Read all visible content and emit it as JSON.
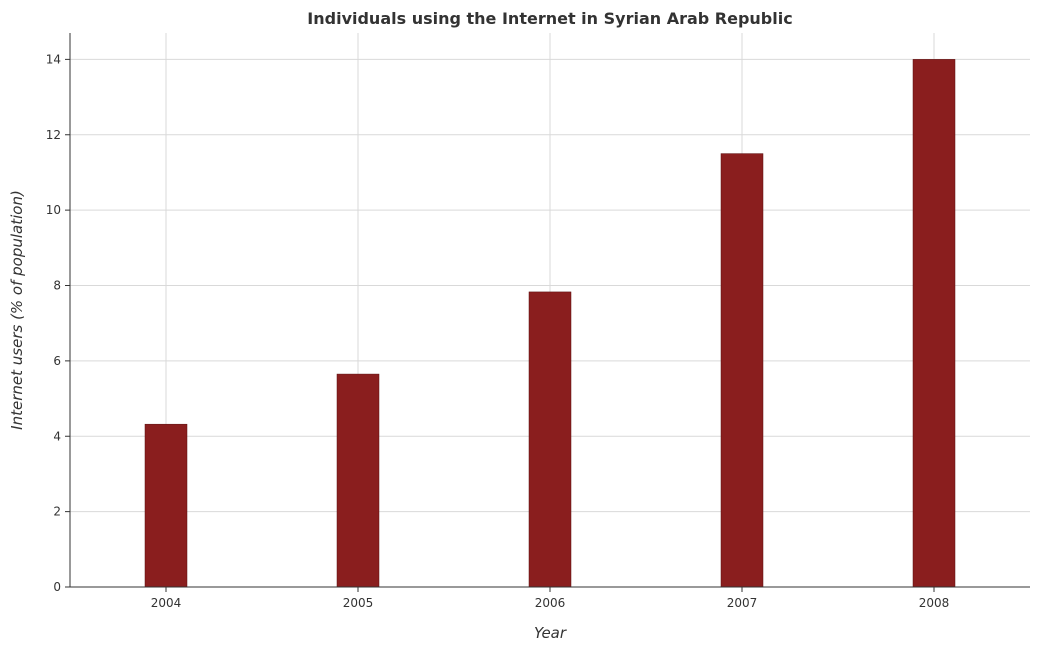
{
  "chart_data": {
    "type": "bar",
    "title": "Individuals using the Internet in Syrian Arab Republic",
    "xlabel": "Year",
    "ylabel": "Internet users (% of population)",
    "categories": [
      "2004",
      "2005",
      "2006",
      "2007",
      "2008"
    ],
    "values": [
      4.32,
      5.65,
      7.83,
      11.5,
      14.0
    ],
    "ylim": [
      0,
      14.7
    ],
    "yticks": [
      0,
      2,
      4,
      6,
      8,
      10,
      12,
      14
    ],
    "ytick_labels": [
      "0",
      "2",
      "4",
      "6",
      "8",
      "10",
      "12",
      "14"
    ],
    "grid": true,
    "bar_color": "#8a1e1e",
    "bar_edge_color": "#5a0f0f",
    "grid_color": "#d9d9d9"
  }
}
